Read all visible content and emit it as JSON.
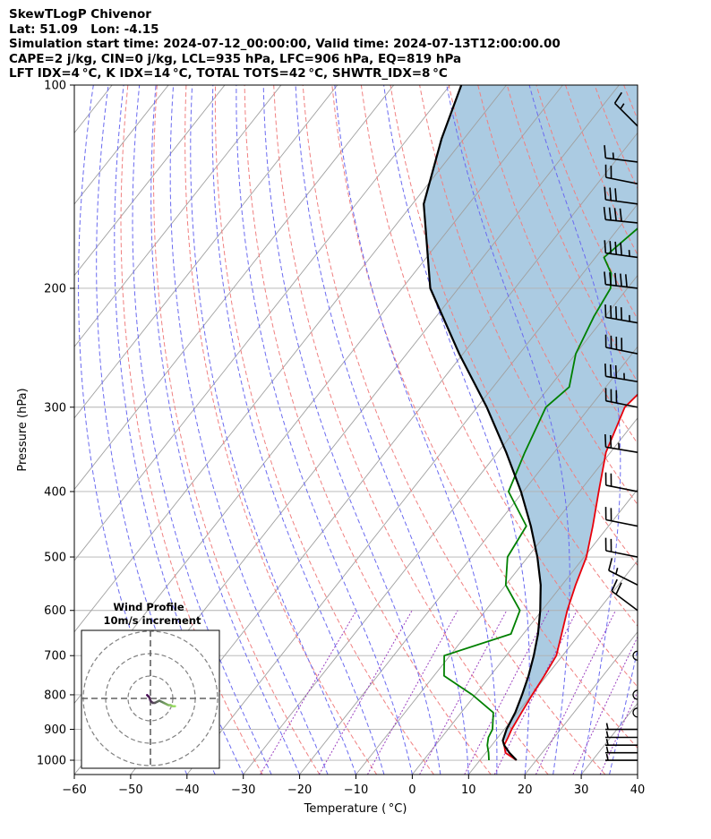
{
  "header": {
    "line1": "SkewTLogP Chivenor",
    "line2": "Lat: 51.09   Lon: -4.15",
    "line3": "Simulation start time: 2024-07-12_00:00:00, Valid time: 2024-07-13T12:00:00.00",
    "line4": "CAPE=2 j/kg, CIN=0 j/kg, LCL=935 hPa, LFC=906 hPa, EQ=819 hPa",
    "line5": "LFT IDX=4$^\\circ$C, K IDX=14$^\\circ$C, TOTAL TOTS=42$^\\circ$C, SHWTR_IDX=8$^\\circ$C"
  },
  "header_display": {
    "line5": "LFT IDX=4 °C, K IDX=14 °C, TOTAL TOTS=42 °C, SHWTR_IDX=8 °C"
  },
  "chart_data": {
    "type": "line",
    "subtype": "skew-t log-p",
    "xlabel": "Temperature ( °C)",
    "ylabel": "Pressure (hPa)",
    "xlim": [
      -60,
      40
    ],
    "ylim": [
      1050,
      100
    ],
    "y_scale": "log",
    "x_ticks": [
      -60,
      -50,
      -40,
      -30,
      -20,
      -10,
      0,
      10,
      20,
      30,
      40
    ],
    "y_ticks": [
      1000,
      900,
      800,
      700,
      600,
      500,
      400,
      300,
      200,
      100
    ],
    "grid": true,
    "colors": {
      "temperature": "#e8000b",
      "dewpoint": "#008000",
      "parcel": "#000000",
      "cape_fill": "#a6c8e0",
      "dry_adiabats": "#f08080",
      "moist_adiabats": "#6a6af0",
      "mixing_ratio": "#9b40c0",
      "isotherms": "#a0a0a0"
    },
    "series": [
      {
        "key": "temperature",
        "pressure": [
          1000,
          975,
          950,
          925,
          900,
          850,
          800,
          750,
          700,
          650,
          600,
          550,
          500,
          450,
          400,
          350,
          300,
          280,
          250,
          220,
          200,
          180,
          160,
          150,
          130,
          110,
          100
        ],
        "values": [
          16.5,
          13.5,
          12.2,
          11.8,
          11.3,
          10.7,
          10.1,
          9.6,
          8.9,
          6.8,
          4.5,
          2.4,
          0.4,
          -2.8,
          -6.6,
          -10.8,
          -13.8,
          -13.0,
          -10.5,
          -5.5,
          -0.5,
          4.5,
          7.5,
          9.5,
          13.0,
          16.0,
          17.2
        ]
      },
      {
        "key": "dewpoint",
        "pressure": [
          1000,
          975,
          950,
          925,
          900,
          850,
          800,
          750,
          700,
          650,
          600,
          550,
          500,
          450,
          400,
          350,
          300,
          280,
          250,
          220,
          200,
          190,
          180,
          150,
          130,
          110,
          100
        ],
        "values": [
          11.6,
          10.5,
          9.2,
          8.3,
          7.9,
          5.7,
          -0.5,
          -8.2,
          -11.0,
          -2.2,
          -3.9,
          -10.0,
          -13.6,
          -14.6,
          -22.6,
          -25.2,
          -27.8,
          -26.5,
          -30.0,
          -32.0,
          -33.0,
          -35.0,
          -38.5,
          -35.0,
          -29.0,
          -25.0,
          -22.0
        ]
      },
      {
        "key": "parcel",
        "pressure": [
          1000,
          975,
          950,
          935,
          900,
          850,
          800,
          750,
          700,
          650,
          600,
          550,
          500,
          450,
          400,
          350,
          300,
          250,
          200,
          150,
          120,
          100
        ],
        "values": [
          16.5,
          14.2,
          12.2,
          11.3,
          10.4,
          9.6,
          8.3,
          6.8,
          4.9,
          2.6,
          -0.3,
          -3.8,
          -8.3,
          -13.8,
          -20.4,
          -28.5,
          -38.3,
          -50.7,
          -65.0,
          -78.0,
          -84.0,
          -88.0
        ]
      }
    ],
    "wind_barbs": {
      "pressure": [
        1000,
        975,
        950,
        925,
        900,
        850,
        800,
        700,
        600,
        550,
        500,
        450,
        400,
        350,
        300,
        275,
        250,
        225,
        200,
        180,
        160,
        150,
        140,
        130,
        115
      ],
      "u": [
        3,
        3,
        3,
        3,
        3,
        0,
        0,
        0,
        8,
        8,
        10,
        10,
        10,
        12,
        15,
        18,
        20,
        23,
        25,
        22,
        20,
        15,
        10,
        8,
        5
      ],
      "v": [
        0,
        0,
        0,
        0,
        0,
        0,
        0,
        0,
        -6,
        -4,
        -2,
        -2,
        -2,
        -2,
        -3,
        -3,
        -4,
        -4,
        -3,
        -3,
        -2,
        -2,
        -2,
        -1,
        -5
      ]
    },
    "hodograph": {
      "title": "Wind Profile",
      "subtitle": "10m/s increment",
      "u": [
        -1.5,
        -1.0,
        -0.5,
        0.0,
        1.0,
        2.0,
        3.0,
        4.0,
        5.0,
        6.0,
        7.0,
        8.0,
        9.0,
        10.0,
        11.0
      ],
      "v": [
        1.5,
        1.0,
        0.5,
        -1.0,
        -2.0,
        -2.0,
        -1.5,
        -1.0,
        -1.5,
        -2.0,
        -2.5,
        -3.0,
        -3.0,
        -3.5,
        -3.5
      ]
    }
  }
}
